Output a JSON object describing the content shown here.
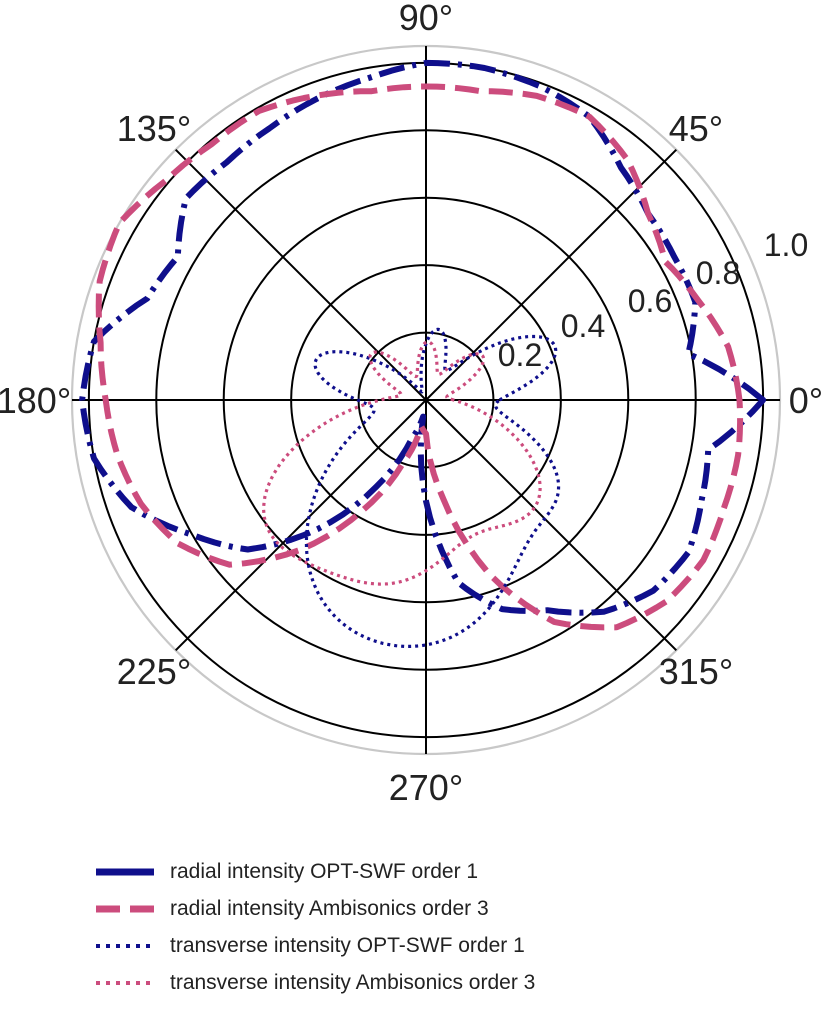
{
  "chart_data": {
    "type": "polar-line",
    "title": "",
    "angular_ticks": [
      "0°",
      "45°",
      "90°",
      "135°",
      "180°",
      "225°",
      "270°",
      "315°"
    ],
    "radial_ticks": [
      "0.2",
      "0.4",
      "0.6",
      "0.8",
      "1.0"
    ],
    "rlim": [
      0,
      1.05
    ],
    "grid": true,
    "legend_position": "bottom",
    "series": [
      {
        "name": "radial intensity OPT-SWF order 1",
        "color": "#0f0f8c",
        "style": "dashdot",
        "theta_deg": [
          0,
          10,
          20,
          30,
          40,
          50,
          60,
          70,
          80,
          90,
          100,
          110,
          120,
          130,
          140,
          150,
          160,
          170,
          180,
          190,
          200,
          210,
          220,
          230,
          240,
          250,
          260,
          270,
          280,
          290,
          300,
          310,
          320,
          330,
          340,
          350,
          360
        ],
        "r": [
          1.0,
          0.79,
          0.85,
          0.85,
          0.86,
          0.9,
          0.97,
          0.99,
          1.0,
          1.0,
          0.97,
          0.95,
          0.93,
          0.92,
          0.93,
          0.85,
          0.88,
          1.0,
          1.02,
          1.0,
          0.93,
          0.8,
          0.69,
          0.5,
          0.3,
          0.12,
          0.05,
          0.3,
          0.55,
          0.66,
          0.72,
          0.82,
          0.88,
          0.9,
          0.87,
          0.85,
          1.0
        ]
      },
      {
        "name": "radial intensity Ambisonics order 3",
        "color": "#cc4c7d",
        "style": "dashed",
        "theta_deg": [
          0,
          10,
          20,
          30,
          40,
          50,
          60,
          70,
          80,
          90,
          100,
          110,
          120,
          130,
          140,
          150,
          160,
          170,
          180,
          190,
          200,
          210,
          220,
          230,
          240,
          250,
          260,
          270,
          280,
          290,
          300,
          310,
          320,
          330,
          340,
          350,
          360
        ],
        "r": [
          0.93,
          0.91,
          0.86,
          0.82,
          0.86,
          0.93,
          0.97,
          0.96,
          0.93,
          0.93,
          0.93,
          0.96,
          0.99,
          0.99,
          1.01,
          1.05,
          1.03,
          0.98,
          0.95,
          0.93,
          0.9,
          0.85,
          0.76,
          0.58,
          0.38,
          0.2,
          0.08,
          0.1,
          0.3,
          0.55,
          0.76,
          0.88,
          0.93,
          0.95,
          0.94,
          0.94,
          0.93
        ]
      },
      {
        "name": "transverse intensity OPT-SWF order 1",
        "color": "#0f0f8c",
        "style": "dotted",
        "lobes": [
          {
            "angle": 23,
            "length": 0.4,
            "width": 16
          },
          {
            "angle": 80,
            "length": 0.2,
            "width": 14
          },
          {
            "angle": 160,
            "length": 0.33,
            "width": 16
          },
          {
            "angle": 238,
            "length": 0.47,
            "width": 26
          },
          {
            "angle": 283,
            "length": 0.55,
            "width": 28
          },
          {
            "angle": 330,
            "length": 0.3,
            "width": 16
          }
        ]
      },
      {
        "name": "transverse intensity Ambisonics order 3",
        "color": "#cc4c7d",
        "style": "dotted",
        "lobes": [
          {
            "angle": 38,
            "length": 0.2,
            "width": 14
          },
          {
            "angle": 88,
            "length": 0.16,
            "width": 14
          },
          {
            "angle": 140,
            "length": 0.2,
            "width": 14
          },
          {
            "angle": 213,
            "length": 0.45,
            "width": 20
          },
          {
            "angle": 258,
            "length": 0.5,
            "width": 26
          },
          {
            "angle": 318,
            "length": 0.4,
            "width": 22
          }
        ]
      }
    ]
  }
}
